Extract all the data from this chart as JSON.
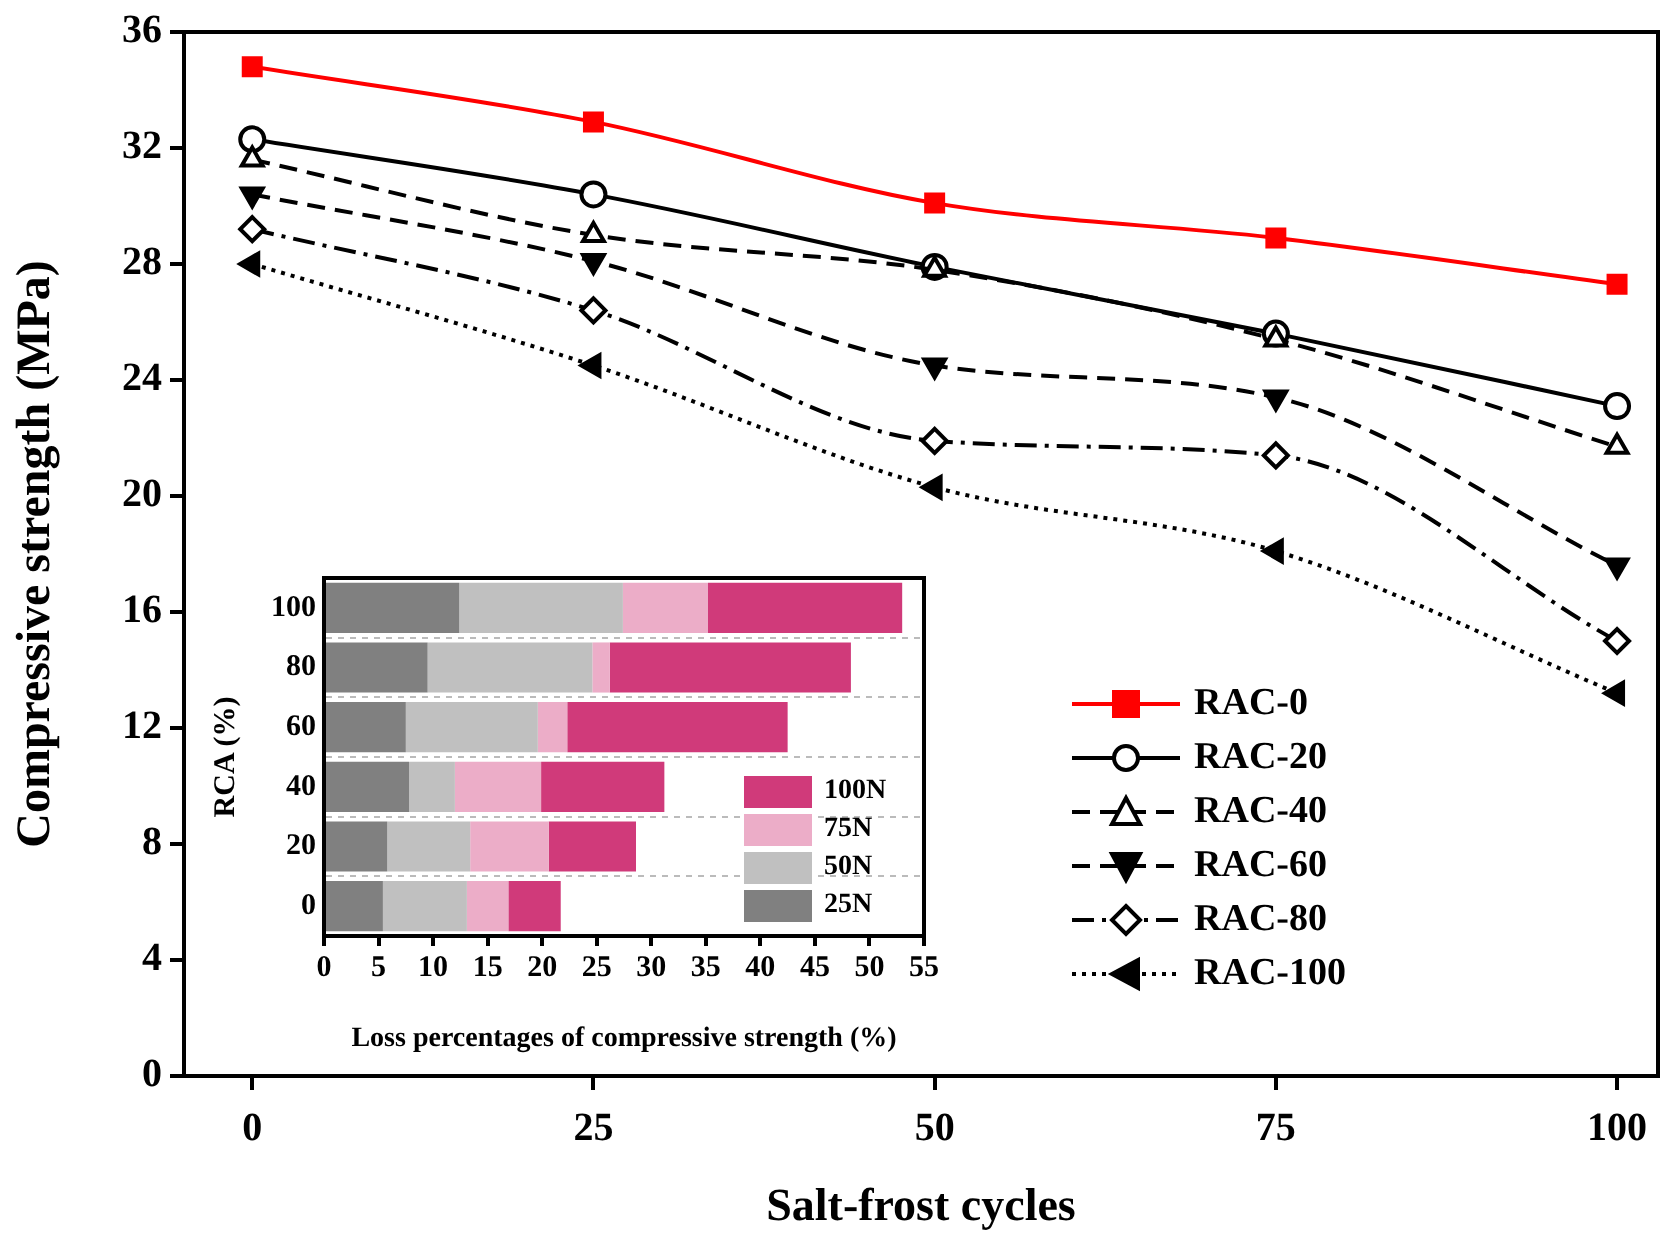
{
  "chart_data": [
    {
      "type": "line",
      "xlabel": "Salt-frost cycles",
      "ylabel": "Compressive strength (MPa)",
      "x": [
        0,
        25,
        50,
        75,
        100
      ],
      "xlim": [
        -5,
        103
      ],
      "xticks": [
        0,
        25,
        50,
        75,
        100
      ],
      "ylim": [
        0,
        36
      ],
      "yticks": [
        0,
        4,
        8,
        12,
        16,
        20,
        24,
        28,
        32,
        36
      ],
      "legend": "right",
      "series": [
        {
          "name": "RAC-0",
          "color": "#ff0000",
          "marker": "square",
          "line_style": "solid",
          "values": [
            34.8,
            32.9,
            30.1,
            28.9,
            27.3
          ]
        },
        {
          "name": "RAC-20",
          "color": "#000000",
          "marker": "circle",
          "line_style": "solid",
          "values": [
            32.3,
            30.4,
            27.9,
            25.6,
            23.1
          ]
        },
        {
          "name": "RAC-40",
          "color": "#000000",
          "marker": "triangle",
          "line_style": "dashed",
          "values": [
            31.6,
            29.0,
            27.8,
            25.4,
            21.7
          ]
        },
        {
          "name": "RAC-60",
          "color": "#000000",
          "marker": "triangle-down",
          "line_style": "dashed",
          "values": [
            30.4,
            28.1,
            24.5,
            23.4,
            17.6
          ]
        },
        {
          "name": "RAC-80",
          "color": "#000000",
          "marker": "diamond",
          "line_style": "dashdot",
          "values": [
            29.2,
            26.4,
            21.9,
            21.4,
            15.0
          ]
        },
        {
          "name": "RAC-100",
          "color": "#000000",
          "marker": "triangle-left",
          "line_style": "dotted",
          "values": [
            28.0,
            24.5,
            20.3,
            18.1,
            13.2
          ]
        }
      ]
    },
    {
      "type": "bar",
      "orientation": "horizontal",
      "stacked": true,
      "xlabel": "Loss percentages of compressive strength (%)",
      "ylabel": "RCA (%)",
      "categories": [
        "100",
        "80",
        "60",
        "40",
        "20",
        "0"
      ],
      "xlim": [
        0,
        55
      ],
      "xticks": [
        0,
        5,
        10,
        15,
        20,
        25,
        30,
        35,
        40,
        45,
        50,
        55
      ],
      "grid": "y",
      "legend": "bottom right",
      "series": [
        {
          "name": "25N",
          "color": "#808080",
          "values": [
            12.4,
            9.5,
            7.5,
            7.8,
            5.8,
            5.4
          ]
        },
        {
          "name": "50N",
          "color": "#c0c0c0",
          "values": [
            15.0,
            15.1,
            12.1,
            4.2,
            7.6,
            7.7
          ]
        },
        {
          "name": "75N",
          "color": "#ecadc8",
          "values": [
            7.8,
            1.6,
            2.7,
            7.9,
            7.2,
            3.8
          ]
        },
        {
          "name": "100N",
          "color": "#d03a7a",
          "values": [
            17.8,
            22.1,
            20.2,
            11.3,
            8.0,
            4.8
          ]
        }
      ]
    }
  ]
}
